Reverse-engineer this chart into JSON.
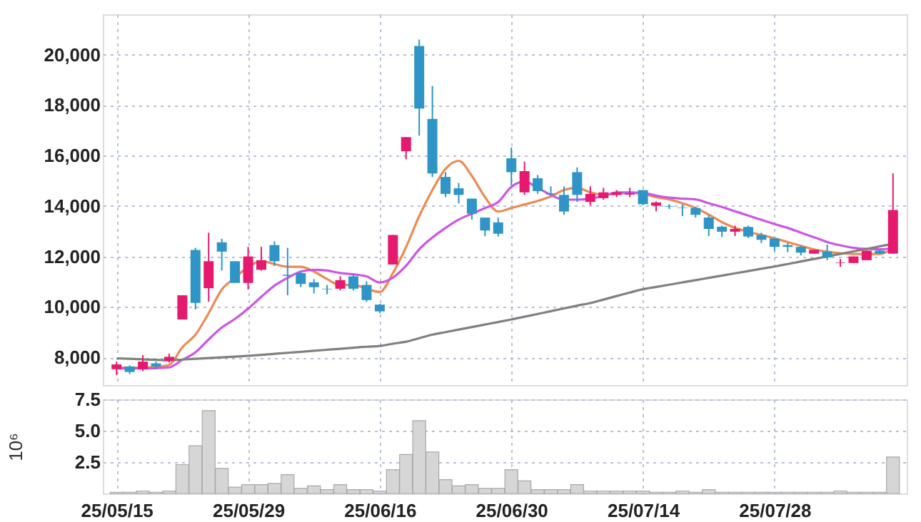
{
  "chart_data": [
    {
      "type": "candlestick",
      "tick_labels": "y",
      "grid": true,
      "categories": [
        null,
        null,
        null,
        null,
        null,
        null,
        null,
        null,
        null,
        null,
        null,
        null,
        null,
        null,
        null,
        null,
        null,
        null,
        null,
        null,
        null,
        null,
        null,
        null,
        null,
        null,
        null,
        null,
        null,
        null,
        null,
        null,
        null,
        null,
        null,
        null,
        null,
        null,
        null,
        null,
        null,
        null,
        null,
        null,
        null,
        null,
        null,
        null,
        null,
        null,
        null,
        null,
        null,
        null,
        null,
        null,
        null,
        null,
        null,
        null
      ],
      "ylim": [
        6900,
        21600
      ],
      "yticks": [
        {
          "value": 8000,
          "label": "8,000"
        },
        {
          "value": 10000,
          "label": "10,000"
        },
        {
          "value": 12000,
          "label": "12,000"
        },
        {
          "value": 14000,
          "label": "14,000"
        },
        {
          "value": 16000,
          "label": "16,000"
        },
        {
          "value": 18000,
          "label": "18,000"
        },
        {
          "value": 20000,
          "label": "20,000"
        }
      ],
      "ohlc": [
        [
          7530,
          7830,
          7300,
          7720
        ],
        [
          7640,
          7680,
          7340,
          7420
        ],
        [
          7530,
          8090,
          7450,
          7830
        ],
        [
          7760,
          7830,
          7530,
          7640
        ],
        [
          7870,
          8150,
          7790,
          8020
        ],
        [
          9500,
          10460,
          9500,
          10460
        ],
        [
          12260,
          12340,
          9900,
          10160
        ],
        [
          10740,
          12940,
          10200,
          11810
        ],
        [
          12560,
          12700,
          11440,
          12190
        ],
        [
          11810,
          11810,
          10950,
          10950
        ],
        [
          10950,
          12380,
          10690,
          12000
        ],
        [
          11470,
          12380,
          11440,
          11850
        ],
        [
          12450,
          12600,
          11620,
          11810
        ],
        [
          11270,
          12340,
          10460,
          11230
        ],
        [
          11340,
          11400,
          10780,
          10910
        ],
        [
          10970,
          11100,
          10540,
          10780
        ],
        [
          10720,
          10870,
          10500,
          10700
        ],
        [
          10720,
          11210,
          10650,
          11060
        ],
        [
          11210,
          11290,
          10650,
          10720
        ],
        [
          10870,
          11020,
          10200,
          10270
        ],
        [
          10090,
          10120,
          9750,
          9820
        ],
        [
          11680,
          12850,
          11680,
          12850
        ],
        [
          16170,
          16730,
          15850,
          16730
        ],
        [
          20340,
          20600,
          16790,
          17860
        ],
        [
          17450,
          18760,
          15150,
          15290
        ],
        [
          15150,
          15340,
          14350,
          14480
        ],
        [
          14700,
          14910,
          14100,
          14440
        ],
        [
          14290,
          14290,
          13460,
          13690
        ],
        [
          13540,
          13540,
          12800,
          13030
        ],
        [
          13350,
          13540,
          12790,
          12900
        ],
        [
          15890,
          16320,
          14820,
          15340
        ],
        [
          14540,
          15760,
          14440,
          15380
        ],
        [
          15100,
          15230,
          14480,
          14590
        ],
        [
          14500,
          14780,
          14440,
          14460
        ],
        [
          14440,
          14780,
          13650,
          13780
        ],
        [
          15340,
          15530,
          14160,
          14440
        ],
        [
          14160,
          14780,
          14030,
          14480
        ],
        [
          14310,
          14720,
          14250,
          14540
        ],
        [
          14440,
          14630,
          14350,
          14540
        ],
        [
          14450,
          14720,
          14350,
          14500
        ],
        [
          14630,
          14630,
          14030,
          14070
        ],
        [
          14010,
          14180,
          13790,
          14140
        ],
        [
          13990,
          14070,
          13880,
          13970
        ],
        [
          13940,
          14070,
          13600,
          13920
        ],
        [
          13920,
          13970,
          13540,
          13650
        ],
        [
          13540,
          13650,
          12810,
          13090
        ],
        [
          13180,
          13220,
          12770,
          12980
        ],
        [
          12980,
          13220,
          12810,
          13090
        ],
        [
          13170,
          13220,
          12730,
          12790
        ],
        [
          12850,
          12940,
          12530,
          12660
        ],
        [
          12710,
          12710,
          12210,
          12380
        ],
        [
          12450,
          12530,
          12170,
          12380
        ],
        [
          12380,
          12430,
          12040,
          12150
        ],
        [
          12110,
          12260,
          12110,
          12260
        ],
        [
          12190,
          12470,
          11850,
          11960
        ],
        [
          11740,
          11900,
          11590,
          11760
        ],
        [
          11740,
          12000,
          11740,
          12000
        ],
        [
          11850,
          12230,
          11850,
          12230
        ],
        [
          12230,
          12260,
          12110,
          12110
        ],
        [
          12110,
          15290,
          12110,
          13840
        ]
      ],
      "colors": [
        "#e5196d",
        "#2e95c6",
        "#e5196d",
        "#2e95c6",
        "#e5196d",
        "#e5196d",
        "#2e95c6",
        "#e5196d",
        "#2e95c6",
        "#2e95c6",
        "#e5196d",
        "#e5196d",
        "#2e95c6",
        "#2e95c6",
        "#2e95c6",
        "#2e95c6",
        "#2e95c6",
        "#e5196d",
        "#2e95c6",
        "#2e95c6",
        "#2e95c6",
        "#e5196d",
        "#e5196d",
        "#2e95c6",
        "#2e95c6",
        "#2e95c6",
        "#2e95c6",
        "#2e95c6",
        "#2e95c6",
        "#2e95c6",
        "#2e95c6",
        "#e5196d",
        "#2e95c6",
        "#2e95c6",
        "#2e95c6",
        "#2e95c6",
        "#e5196d",
        "#e5196d",
        "#e5196d",
        "#e5196d",
        "#2e95c6",
        "#e5196d",
        "#2e95c6",
        "#2e95c6",
        "#2e95c6",
        "#2e95c6",
        "#2e95c6",
        "#e5196d",
        "#2e95c6",
        "#2e95c6",
        "#2e95c6",
        "#2e95c6",
        "#2e95c6",
        "#e5196d",
        "#2e95c6",
        "#e5196d",
        "#e5196d",
        "#e5196d",
        "#2e95c6",
        "#e5196d"
      ],
      "series": [
        {
          "type": "line",
          "color": "#ec8a55",
          "values": [
            7590,
            7590,
            7600,
            7620,
            7700,
            8400,
            8900,
            9750,
            10690,
            11150,
            11590,
            11810,
            11700,
            11590,
            11590,
            11400,
            11100,
            10870,
            10870,
            10720,
            10590,
            11340,
            12370,
            13600,
            14630,
            15470,
            15790,
            15190,
            14350,
            13780,
            13920,
            14060,
            14200,
            14380,
            14630,
            14720,
            14540,
            14440,
            14480,
            14520,
            14480,
            14350,
            14260,
            14110,
            13920,
            13660,
            13360,
            13130,
            12980,
            12850,
            12720,
            12570,
            12420,
            12280,
            12190,
            12130,
            12100,
            12100,
            12100,
            12320
          ]
        },
        {
          "type": "line",
          "color": "#cc55e6",
          "values": [
            7560,
            7560,
            7560,
            7570,
            7600,
            7900,
            8200,
            8710,
            9180,
            9520,
            9930,
            10400,
            10840,
            11150,
            11400,
            11470,
            11440,
            11340,
            11290,
            11210,
            10970,
            11160,
            11630,
            12280,
            12750,
            13130,
            13460,
            13690,
            13920,
            14160,
            14760,
            14970,
            14720,
            14440,
            14250,
            14250,
            14290,
            14400,
            14540,
            14540,
            14520,
            14410,
            14330,
            14290,
            14260,
            14110,
            13960,
            13790,
            13620,
            13450,
            13280,
            13130,
            12940,
            12760,
            12570,
            12440,
            12340,
            12300,
            12280,
            12320
          ]
        },
        {
          "type": "line",
          "color": "#808080",
          "values": [
            7960,
            7940,
            7920,
            7900,
            7880,
            7910,
            7940,
            7970,
            8000,
            8030,
            8060,
            8100,
            8140,
            8180,
            8220,
            8260,
            8300,
            8340,
            8380,
            8420,
            8450,
            8540,
            8620,
            8760,
            8900,
            9000,
            9100,
            9200,
            9300,
            9400,
            9500,
            9610,
            9720,
            9830,
            9940,
            10050,
            10150,
            10290,
            10430,
            10570,
            10700,
            10790,
            10880,
            10970,
            11060,
            11150,
            11240,
            11330,
            11420,
            11510,
            11600,
            11700,
            11800,
            11900,
            12000,
            12100,
            12200,
            12300,
            12400,
            12500
          ]
        }
      ]
    },
    {
      "type": "bar",
      "grid": true,
      "ylabel": "10⁶",
      "color": "#d6d6d6",
      "categories": [
        "25/05/15",
        null,
        null,
        null,
        null,
        null,
        null,
        null,
        null,
        null,
        "25/05/29",
        null,
        null,
        null,
        null,
        null,
        null,
        null,
        null,
        null,
        "25/06/16",
        null,
        null,
        null,
        null,
        null,
        null,
        null,
        null,
        null,
        "25/06/30",
        null,
        null,
        null,
        null,
        null,
        null,
        null,
        null,
        null,
        "25/07/14",
        null,
        null,
        null,
        null,
        null,
        null,
        null,
        null,
        null,
        "25/07/28",
        null,
        null,
        null,
        null,
        null,
        null,
        null,
        null,
        null
      ],
      "ylim": [
        0,
        7.5
      ],
      "yticks": [
        2.5,
        {
          "value": 5,
          "label": "5.0"
        },
        7.5
      ],
      "values": [
        0.1,
        0.1,
        0.2,
        0.1,
        0.2,
        2.3,
        3.8,
        6.6,
        2.0,
        0.5,
        0.7,
        0.7,
        0.8,
        1.5,
        0.4,
        0.6,
        0.3,
        0.7,
        0.3,
        0.3,
        0.2,
        1.9,
        3.1,
        5.8,
        3.3,
        1.1,
        0.6,
        0.7,
        0.4,
        0.4,
        1.9,
        1.0,
        0.3,
        0.3,
        0.3,
        0.7,
        0.2,
        0.2,
        0.2,
        0.2,
        0.2,
        0.1,
        0.1,
        0.2,
        0.1,
        0.3,
        0.1,
        0.1,
        0.1,
        0.1,
        0.1,
        0.1,
        0.1,
        0.1,
        0.1,
        0.2,
        0.1,
        0.1,
        0.1,
        2.9
      ]
    }
  ]
}
